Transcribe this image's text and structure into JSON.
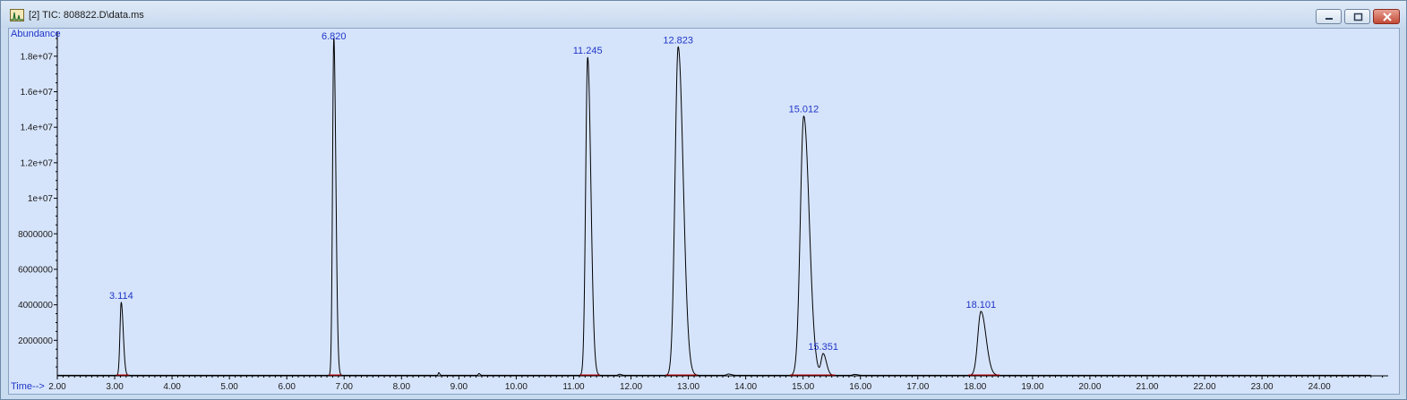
{
  "window": {
    "title": "[2] TIC: 808822.D\\data.ms",
    "icon": "chromatogram-app-icon",
    "controls": [
      "minimize-icon",
      "maximize-icon",
      "close-icon"
    ]
  },
  "colors": {
    "plot_background": "#d6e4fb",
    "trace": "#000000",
    "labels": "#1f35c8",
    "baseline_marks": "#cc0000"
  },
  "chart_data": {
    "type": "line",
    "ylabel": "Abundance",
    "xlabel": "Time-->",
    "xlim": [
      2.0,
      25.2
    ],
    "ylim": [
      0,
      19200000
    ],
    "x_ticks": [
      2.0,
      3.0,
      4.0,
      5.0,
      6.0,
      7.0,
      8.0,
      9.0,
      10.0,
      11.0,
      12.0,
      13.0,
      14.0,
      15.0,
      16.0,
      17.0,
      18.0,
      19.0,
      20.0,
      21.0,
      22.0,
      23.0,
      24.0
    ],
    "x_tick_labels": [
      "2.00",
      "3.00",
      "4.00",
      "5.00",
      "6.00",
      "7.00",
      "8.00",
      "9.00",
      "10.00",
      "11.00",
      "12.00",
      "13.00",
      "14.00",
      "15.00",
      "16.00",
      "17.00",
      "18.00",
      "19.00",
      "20.00",
      "21.00",
      "22.00",
      "23.00",
      "24.00"
    ],
    "y_ticks": [
      2000000,
      4000000,
      6000000,
      8000000,
      10000000,
      12000000,
      14000000,
      16000000,
      18000000
    ],
    "y_tick_labels": [
      "2000000",
      "4000000",
      "6000000",
      "8000000",
      "1e+07",
      "1.2e+07",
      "1.4e+07",
      "1.6e+07",
      "1.8e+07"
    ],
    "baseline": 30000,
    "peaks": [
      {
        "label": "3.114",
        "x": 3.114,
        "y": 4100000,
        "width": 0.022
      },
      {
        "label": "6.820",
        "x": 6.82,
        "y": 19000000,
        "width": 0.022
      },
      {
        "label": "11.245",
        "x": 11.245,
        "y": 17900000,
        "width": 0.035
      },
      {
        "label": "12.823",
        "x": 12.823,
        "y": 18500000,
        "width": 0.055
      },
      {
        "label": "15.012",
        "x": 15.012,
        "y": 14600000,
        "width": 0.06
      },
      {
        "label": "15.351",
        "x": 15.351,
        "y": 1200000,
        "width": 0.035
      },
      {
        "label": "18.101",
        "x": 18.101,
        "y": 3600000,
        "width": 0.055
      }
    ],
    "minor_peaks": [
      {
        "x": 8.65,
        "y": 150000,
        "width": 0.01
      },
      {
        "x": 9.35,
        "y": 100000,
        "width": 0.012
      },
      {
        "x": 11.8,
        "y": 60000,
        "width": 0.02
      },
      {
        "x": 13.7,
        "y": 70000,
        "width": 0.03
      },
      {
        "x": 15.9,
        "y": 50000,
        "width": 0.03
      }
    ]
  }
}
